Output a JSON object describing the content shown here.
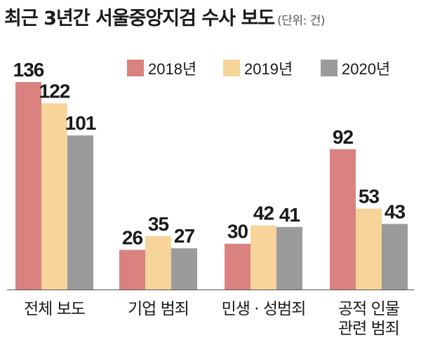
{
  "header": {
    "title": "최근 3년간 서울중앙지검 수사 보도",
    "unit": "(단위: 건)"
  },
  "chart_data": {
    "type": "bar",
    "title": "최근 3년간 서울중앙지검 수사 보도",
    "unit": "(단위: 건)",
    "categories": [
      [
        "전체 보도"
      ],
      [
        "기업 범죄"
      ],
      [
        "민생 · 성범죄"
      ],
      [
        "공적 인물",
        "관련 범죄"
      ]
    ],
    "series": [
      {
        "name": "2018년",
        "color": "#d9827f",
        "values": [
          136,
          26,
          30,
          92
        ]
      },
      {
        "name": "2019년",
        "color": "#f7d49a",
        "values": [
          122,
          35,
          42,
          53
        ]
      },
      {
        "name": "2020년",
        "color": "#9b9b9b",
        "values": [
          101,
          27,
          41,
          43
        ]
      }
    ],
    "ylim": [
      0,
      136
    ],
    "grid": false,
    "legend": "top-right"
  }
}
